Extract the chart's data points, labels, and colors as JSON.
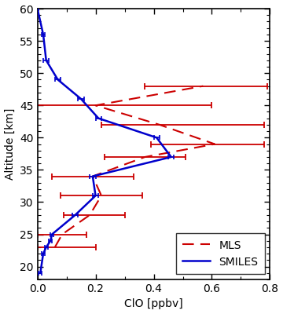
{
  "title": "",
  "xlabel": "ClO [ppbv]",
  "ylabel": "Altitude [km]",
  "xlim": [
    0.0,
    0.8
  ],
  "ylim": [
    18,
    60
  ],
  "xticks": [
    0.0,
    0.2,
    0.4,
    0.6,
    0.8
  ],
  "yticks": [
    20,
    25,
    30,
    35,
    40,
    45,
    50,
    55,
    60
  ],
  "smiles_alt": [
    19,
    22,
    23,
    24,
    25,
    28,
    31,
    34,
    37,
    40,
    43,
    46,
    49,
    52,
    56,
    60
  ],
  "smiles_clo": [
    0.01,
    0.02,
    0.03,
    0.045,
    0.05,
    0.13,
    0.2,
    0.19,
    0.46,
    0.41,
    0.21,
    0.15,
    0.07,
    0.03,
    0.02,
    0.0
  ],
  "smiles_xerr": [
    0.005,
    0.005,
    0.005,
    0.005,
    0.005,
    0.01,
    0.01,
    0.01,
    0.01,
    0.01,
    0.01,
    0.01,
    0.01,
    0.01,
    0.005,
    0.003
  ],
  "mls_alt": [
    23,
    25,
    28,
    31,
    34,
    37,
    39,
    42,
    45,
    48
  ],
  "mls_clo": [
    0.06,
    0.085,
    0.18,
    0.22,
    0.19,
    0.37,
    0.61,
    0.42,
    0.2,
    0.57
  ],
  "mls_xerr_lo": [
    0.06,
    0.085,
    0.09,
    0.14,
    0.14,
    0.14,
    0.22,
    0.2,
    0.21,
    0.2
  ],
  "mls_xerr_hi": [
    0.14,
    0.085,
    0.12,
    0.14,
    0.14,
    0.14,
    0.17,
    0.36,
    0.4,
    0.22
  ],
  "smiles_color": "#0000cc",
  "mls_color": "#cc0000",
  "bg_color": "#ffffff",
  "legend_loc": "lower right",
  "figwidth": 3.6,
  "figheight": 4.0,
  "dpi": 100
}
